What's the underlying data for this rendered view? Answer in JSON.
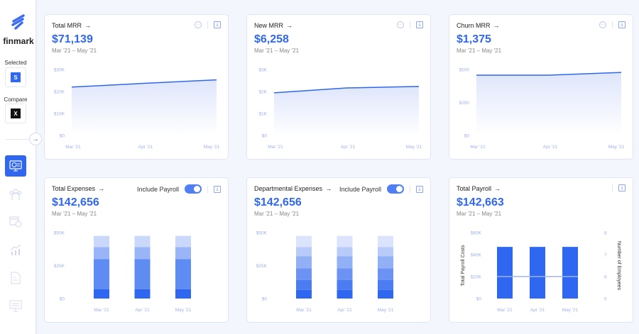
{
  "brand": {
    "name": "finmark"
  },
  "sidebar": {
    "selected_label": "Selected",
    "selected_badge": "S",
    "compare_label": "Compare",
    "compare_badge": "X",
    "nav": [
      {
        "icon": "dashboard-monitor-icon",
        "active": true
      },
      {
        "icon": "people-icon"
      },
      {
        "icon": "calendar-dollar-icon"
      },
      {
        "icon": "growth-chart-icon"
      },
      {
        "icon": "document-dollar-icon"
      },
      {
        "icon": "settings-monitor-icon"
      }
    ]
  },
  "colors": {
    "accent": "#2f67f0",
    "axis": "#9fb1ee"
  },
  "cards": [
    {
      "title": "Total MRR",
      "value": "$71,139",
      "range": "Mar '21 – May '21",
      "more": true
    },
    {
      "title": "New MRR",
      "value": "$6,258",
      "range": "Mar '21 – May '21",
      "more": true
    },
    {
      "title": "Churn MRR",
      "value": "$1,375",
      "range": "Mar '21 – May '21",
      "more": true
    },
    {
      "title": "Total Expenses",
      "value": "$142,656",
      "range": "Mar '21 – May '21",
      "toggle_label": "Include Payroll",
      "toggle_on": true
    },
    {
      "title": "Departmental Expenses",
      "value": "$142,656",
      "range": "Mar '21 – May '21",
      "toggle_label": "Include Payroll",
      "toggle_on": true
    },
    {
      "title": "Total Payroll",
      "value": "$142,663",
      "range": "Mar '21 – May '21"
    }
  ],
  "chart_data": [
    {
      "type": "area",
      "categories": [
        "Mar '21",
        "Apr '21",
        "May '21"
      ],
      "values": [
        22000,
        23700,
        25300
      ],
      "ylim": [
        0,
        30000
      ],
      "yticks": [
        "$0",
        "$10K",
        "$20K",
        "$30K"
      ]
    },
    {
      "type": "area",
      "categories": [
        "Mar '21",
        "Apr '21",
        "May '21"
      ],
      "values": [
        1940,
        2160,
        2230
      ],
      "ylim": [
        0,
        3000
      ],
      "yticks": [
        "$0",
        "$1K",
        "$2K",
        "$3K"
      ]
    },
    {
      "type": "area",
      "categories": [
        "Mar '21",
        "Apr '21",
        "May '21"
      ],
      "values": [
        457,
        457,
        478
      ],
      "ylim": [
        0,
        500
      ],
      "yticks": [
        "$0",
        "$250",
        "$500"
      ]
    },
    {
      "type": "bar",
      "stacked": true,
      "categories": [
        "Mar '21",
        "Apr '21",
        "May '21"
      ],
      "series": [
        {
          "values": [
            7000,
            7000,
            7000
          ]
        },
        {
          "values": [
            23000,
            23000,
            23000
          ]
        },
        {
          "values": [
            9000,
            9000,
            9000
          ]
        },
        {
          "values": [
            8500,
            8500,
            8500
          ]
        }
      ],
      "ylim": [
        0,
        50000
      ],
      "yticks": [
        "$0",
        "$25K",
        "$50K"
      ]
    },
    {
      "type": "bar",
      "stacked": true,
      "categories": [
        "Mar '21",
        "Apr '21",
        "May '21"
      ],
      "series": [
        {
          "values": [
            6500,
            6500,
            6500
          ]
        },
        {
          "values": [
            7500,
            7500,
            7500
          ]
        },
        {
          "values": [
            9000,
            9000,
            9000
          ]
        },
        {
          "values": [
            9000,
            9000,
            9000
          ]
        },
        {
          "values": [
            7000,
            7000,
            7000
          ]
        },
        {
          "values": [
            8500,
            8500,
            8500
          ]
        }
      ],
      "ylim": [
        0,
        50000
      ],
      "yticks": [
        "$0",
        "$25K",
        "$50K"
      ]
    },
    {
      "type": "bar",
      "categories": [
        "Mar '21",
        "Apr '21",
        "May '21"
      ],
      "values": [
        47000,
        47000,
        47000
      ],
      "ylim": [
        0,
        60000
      ],
      "yticks": [
        "$0",
        "$20K",
        "$40K",
        "$60K"
      ],
      "ylabel": "Total Payroll Costs",
      "line": {
        "values": [
          6,
          6,
          6
        ],
        "ylim": [
          5,
          8
        ],
        "yticks": [
          "5",
          "6",
          "7",
          "8"
        ],
        "ylabel": "Number of Employees"
      }
    }
  ]
}
